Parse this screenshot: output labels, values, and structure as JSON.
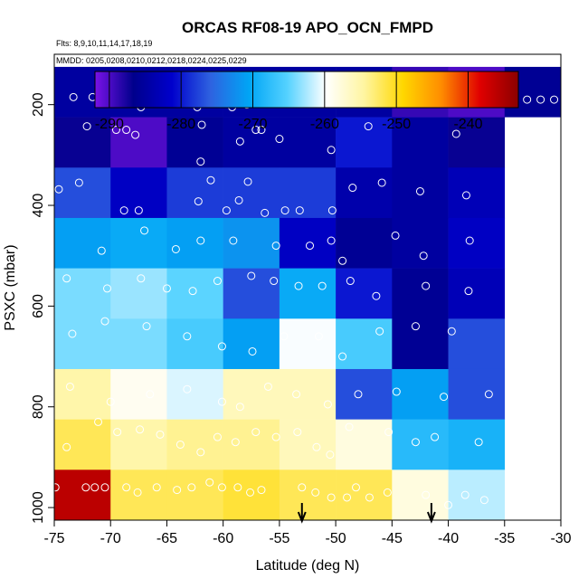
{
  "chart_data": {
    "type": "heatmap",
    "title": "ORCAS RF08-19 APO_OCN_FMPD",
    "flights_note": "Flts: 8,9,10,11,14,17,18,19",
    "dates_note": "MMDD: 0205,0208,0210,0212,0218,0224,0225,0229",
    "xlabel": "Latitude (deg N)",
    "ylabel": "PSXC (mbar)",
    "xlim": [
      -75,
      -30
    ],
    "ylim": [
      1025,
      100
    ],
    "x_ticks": [
      -75,
      -70,
      -65,
      -60,
      -55,
      -50,
      -45,
      -40,
      -35,
      -30
    ],
    "x_tick_labels": [
      "-75",
      "-70",
      "-65",
      "-60",
      "-55",
      "-50",
      "-45",
      "-40",
      "-35",
      "-30"
    ],
    "y_ticks": [
      200,
      400,
      600,
      800,
      1000
    ],
    "y_tick_labels": [
      "200",
      "400",
      "600",
      "800",
      "1000"
    ],
    "colorbar": {
      "min": -292,
      "max": -233,
      "ticks": [
        -290,
        -280,
        -270,
        -260,
        -250,
        -240
      ],
      "tick_labels": [
        "-290",
        "-280",
        "-270",
        "-260",
        "-250",
        "-240"
      ],
      "colors": [
        "#7a12e8",
        "#00008c",
        "#0000cc",
        "#2e62e0",
        "#00a5f5",
        "#55d2ff",
        "#ffffff",
        "#fff5a0",
        "#ffd700",
        "#ff8c00",
        "#e00000",
        "#8b0000"
      ]
    },
    "x_edges": [
      -75,
      -70,
      -65,
      -60,
      -55,
      -50,
      -45,
      -40,
      -35
    ],
    "y_edges": [
      125,
      225,
      325,
      425,
      525,
      625,
      725,
      825,
      925,
      1025
    ],
    "cell_values": [
      [
        -285,
        -285,
        -285,
        -285,
        -285,
        -285,
        -289,
        -290
      ],
      [
        -287,
        -290,
        -286,
        -285,
        -285,
        -280,
        -285,
        -287
      ],
      [
        -277,
        -282,
        -278,
        -278,
        -278,
        -284,
        -285,
        -283
      ],
      [
        -271,
        -270,
        -271,
        -272,
        -282,
        -286,
        -285,
        -282
      ],
      [
        -264,
        -263,
        -265,
        -277,
        -270,
        -280,
        -286,
        -283
      ],
      [
        -264,
        -264,
        -266,
        -271,
        -260,
        -266,
        -286,
        -277
      ],
      [
        -255,
        -259,
        -261,
        -256,
        -256,
        -277,
        -271,
        -277
      ],
      [
        -252,
        -255,
        -254,
        -254,
        -256,
        -258,
        -268,
        -269
      ],
      [
        -236,
        -252,
        -252,
        -251,
        -252,
        -252,
        -258,
        -262
      ]
    ],
    "extra_cells": [
      {
        "x0": -35,
        "x1": -30,
        "y0": 125,
        "y1": 225,
        "value": -286
      }
    ],
    "arrows": [
      {
        "lat": -53,
        "label": "down-arrow"
      },
      {
        "lat": -41.5,
        "label": "down-arrow"
      }
    ],
    "points": [
      [
        -73.3,
        185
      ],
      [
        -71.6,
        185
      ],
      [
        -67.3,
        205
      ],
      [
        -63.8,
        185
      ],
      [
        -62.3,
        205
      ],
      [
        -61.7,
        195
      ],
      [
        -60.6,
        185
      ],
      [
        -59.2,
        205
      ],
      [
        -57.9,
        200
      ],
      [
        -56.9,
        185
      ],
      [
        -51.6,
        198
      ],
      [
        -50.9,
        185
      ],
      [
        -49.4,
        185
      ],
      [
        -47.8,
        185
      ],
      [
        -46.7,
        185
      ],
      [
        -39.3,
        190
      ],
      [
        -38.2,
        190
      ],
      [
        -37.1,
        190
      ],
      [
        -36.2,
        190
      ],
      [
        -35.4,
        190
      ],
      [
        -34.2,
        190
      ],
      [
        -33.0,
        190
      ],
      [
        -31.8,
        190
      ],
      [
        -30.6,
        190
      ],
      [
        -72.1,
        243
      ],
      [
        -69.5,
        250
      ],
      [
        -68.6,
        250
      ],
      [
        -67.8,
        260
      ],
      [
        -61.9,
        240
      ],
      [
        -58.5,
        273
      ],
      [
        -57.1,
        250
      ],
      [
        -56.6,
        250
      ],
      [
        -55.0,
        268
      ],
      [
        -50.4,
        290
      ],
      [
        -47.1,
        243
      ],
      [
        -39.3,
        258
      ],
      [
        -62.0,
        313
      ],
      [
        -57.8,
        353
      ],
      [
        -74.6,
        368
      ],
      [
        -72.8,
        355
      ],
      [
        -68.8,
        410
      ],
      [
        -67.5,
        410
      ],
      [
        -62.2,
        392
      ],
      [
        -61.1,
        350
      ],
      [
        -59.7,
        410
      ],
      [
        -58.6,
        390
      ],
      [
        -56.3,
        415
      ],
      [
        -54.5,
        410
      ],
      [
        -53.2,
        410
      ],
      [
        -50.3,
        410
      ],
      [
        -48.5,
        365
      ],
      [
        -45.9,
        355
      ],
      [
        -42.5,
        372
      ],
      [
        -38.4,
        380
      ],
      [
        -70.8,
        490
      ],
      [
        -67.0,
        450
      ],
      [
        -64.2,
        487
      ],
      [
        -62.0,
        470
      ],
      [
        -59.1,
        470
      ],
      [
        -55.3,
        480
      ],
      [
        -52.3,
        480
      ],
      [
        -50.4,
        470
      ],
      [
        -49.4,
        510
      ],
      [
        -44.7,
        460
      ],
      [
        -42.2,
        500
      ],
      [
        -38.1,
        470
      ],
      [
        -73.9,
        545
      ],
      [
        -70.3,
        565
      ],
      [
        -67.3,
        545
      ],
      [
        -65.0,
        565
      ],
      [
        -62.7,
        570
      ],
      [
        -60.5,
        550
      ],
      [
        -57.5,
        540
      ],
      [
        -55.5,
        550
      ],
      [
        -53.3,
        560
      ],
      [
        -51.2,
        560
      ],
      [
        -48.7,
        550
      ],
      [
        -46.4,
        580
      ],
      [
        -42.0,
        560
      ],
      [
        -38.2,
        570
      ],
      [
        -73.4,
        655
      ],
      [
        -70.5,
        630
      ],
      [
        -66.8,
        640
      ],
      [
        -63.2,
        660
      ],
      [
        -60.1,
        680
      ],
      [
        -57.4,
        690
      ],
      [
        -54.6,
        660
      ],
      [
        -51.5,
        660
      ],
      [
        -49.4,
        700
      ],
      [
        -46.1,
        650
      ],
      [
        -42.9,
        640
      ],
      [
        -39.7,
        650
      ],
      [
        -73.6,
        760
      ],
      [
        -70.0,
        790
      ],
      [
        -66.5,
        775
      ],
      [
        -63.2,
        765
      ],
      [
        -60.1,
        790
      ],
      [
        -58.5,
        800
      ],
      [
        -56.0,
        760
      ],
      [
        -53.5,
        775
      ],
      [
        -50.7,
        795
      ],
      [
        -48.0,
        775
      ],
      [
        -44.6,
        770
      ],
      [
        -40.4,
        780
      ],
      [
        -36.4,
        775
      ],
      [
        -73.9,
        880
      ],
      [
        -71.1,
        830
      ],
      [
        -69.4,
        850
      ],
      [
        -67.4,
        845
      ],
      [
        -65.6,
        855
      ],
      [
        -63.8,
        875
      ],
      [
        -62.0,
        890
      ],
      [
        -60.5,
        860
      ],
      [
        -58.9,
        870
      ],
      [
        -57.1,
        850
      ],
      [
        -55.3,
        860
      ],
      [
        -53.4,
        850
      ],
      [
        -51.7,
        880
      ],
      [
        -50.5,
        895
      ],
      [
        -48.8,
        840
      ],
      [
        -45.3,
        850
      ],
      [
        -42.9,
        870
      ],
      [
        -41.2,
        860
      ],
      [
        -37.3,
        870
      ],
      [
        -74.9,
        960
      ],
      [
        -72.2,
        960
      ],
      [
        -71.4,
        960
      ],
      [
        -70.5,
        960
      ],
      [
        -68.6,
        960
      ],
      [
        -67.6,
        970
      ],
      [
        -65.9,
        960
      ],
      [
        -64.1,
        965
      ],
      [
        -62.8,
        960
      ],
      [
        -61.2,
        950
      ],
      [
        -60.1,
        960
      ],
      [
        -58.7,
        960
      ],
      [
        -57.6,
        970
      ],
      [
        -56.6,
        965
      ],
      [
        -53.0,
        960
      ],
      [
        -51.8,
        970
      ],
      [
        -50.4,
        980
      ],
      [
        -49.0,
        980
      ],
      [
        -48.2,
        960
      ],
      [
        -47.0,
        980
      ],
      [
        -45.4,
        970
      ],
      [
        -42.0,
        975
      ],
      [
        -40.0,
        995
      ],
      [
        -38.5,
        975
      ],
      [
        -36.8,
        985
      ]
    ]
  }
}
